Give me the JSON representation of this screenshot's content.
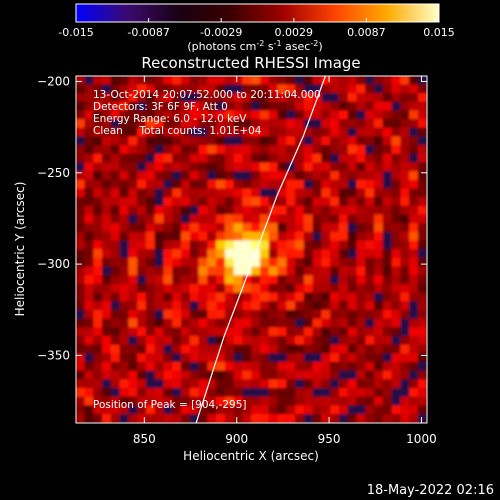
{
  "colorbar": {
    "ticks": [
      "-0.015",
      "-0.0087",
      "-0.0029",
      "0.0029",
      "0.0087",
      "0.015"
    ],
    "unit_label_parts": [
      "(photons cm",
      "-2",
      " s",
      "-1",
      " asec",
      "-2",
      ")"
    ],
    "colors": [
      "#0000ff",
      "#3a0a6e",
      "#1a0010",
      "#3a0000",
      "#a00000",
      "#ff4400",
      "#ffaa00",
      "#ffffcc"
    ]
  },
  "chart_data": {
    "type": "heatmap",
    "title": "Reconstructed RHESSI Image",
    "xlabel": "Heliocentric X (arcsec)",
    "ylabel": "Heliocentric Y (arcsec)",
    "xlim": [
      813,
      1003
    ],
    "ylim": [
      -387,
      -197
    ],
    "xticks": [
      850,
      900,
      950,
      1000
    ],
    "yticks": [
      -200,
      -250,
      -300,
      -350
    ],
    "annotations": [
      "13-Oct-2014 20:07:52.000 to 20:11:04.000",
      "Detectors: 3F 6F 9F, Att 0",
      "Energy Range: 6.0 - 12.0 keV",
      "Clean     Total counts: 1.01E+04"
    ],
    "peak_label": "Position of Peak = [904,-295]",
    "peak": [
      904,
      -295
    ],
    "limb_points": [
      [
        878,
        -387
      ],
      [
        893,
        -340
      ],
      [
        908,
        -300
      ],
      [
        922,
        -262
      ],
      [
        936,
        -230
      ],
      [
        948,
        -197
      ]
    ],
    "colorscale": "hot",
    "grid": false
  },
  "footer": {
    "date": "18-May-2022 02:16"
  }
}
